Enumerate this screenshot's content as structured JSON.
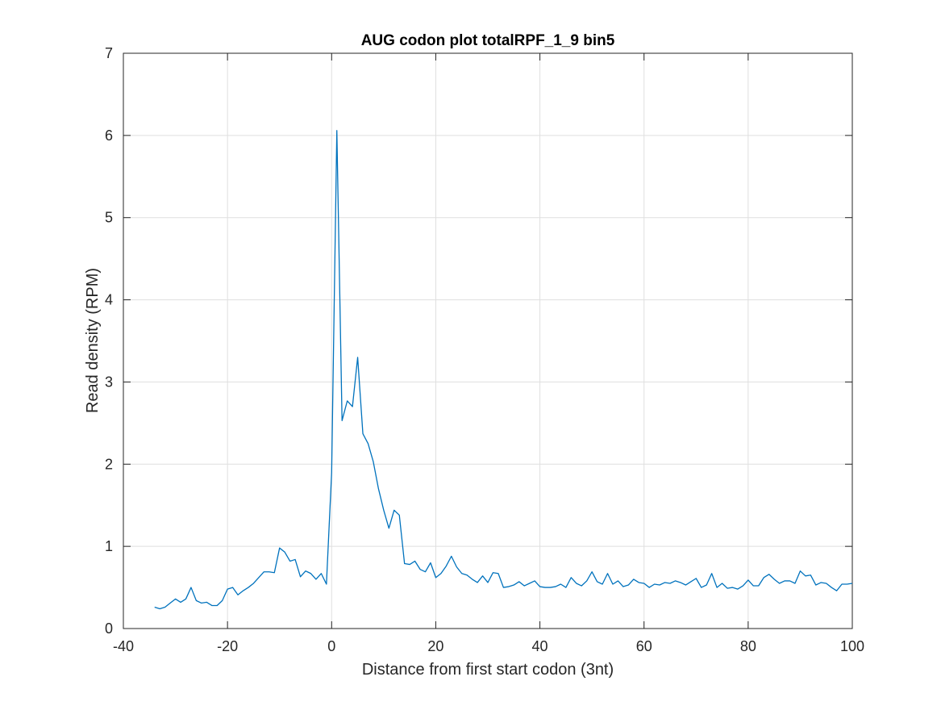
{
  "chart_data": {
    "type": "line",
    "title": "AUG codon plot totalRPF_1_9 bin5",
    "xlabel": "Distance from first start codon (3nt)",
    "ylabel": "Read density (RPM)",
    "xlim": [
      -40,
      100
    ],
    "ylim": [
      0,
      7
    ],
    "xticks": [
      -40,
      -20,
      0,
      20,
      40,
      60,
      80,
      100
    ],
    "yticks": [
      0,
      1,
      2,
      3,
      4,
      5,
      6,
      7
    ],
    "xtick_labels": [
      "-40",
      "-20",
      "0",
      "20",
      "40",
      "60",
      "80",
      "100"
    ],
    "ytick_labels": [
      "0",
      "1",
      "2",
      "3",
      "4",
      "5",
      "6",
      "7"
    ],
    "grid": true,
    "line_color": "#0072BD",
    "series": [
      {
        "x": [
          -34,
          -33,
          -32,
          -31,
          -30,
          -29,
          -28,
          -27,
          -26,
          -25,
          -24,
          -23,
          -22,
          -21,
          -20,
          -19,
          -18,
          -17,
          -16,
          -15,
          -14,
          -13,
          -12,
          -11,
          -10,
          -9,
          -8,
          -7,
          -6,
          -5,
          -4,
          -3,
          -2,
          -1,
          0,
          1,
          2,
          3,
          4,
          5,
          6,
          7,
          8,
          9,
          10,
          11,
          12,
          13,
          14,
          15,
          16,
          17,
          18,
          19,
          20,
          21,
          22,
          23,
          24,
          25,
          26,
          27,
          28,
          29,
          30,
          31,
          32,
          33,
          34,
          35,
          36,
          37,
          38,
          39,
          40,
          41,
          42,
          43,
          44,
          45,
          46,
          47,
          48,
          49,
          50,
          51,
          52,
          53,
          54,
          55,
          56,
          57,
          58,
          59,
          60,
          61,
          62,
          63,
          64,
          65,
          66,
          67,
          68,
          69,
          70,
          71,
          72,
          73,
          74,
          75,
          76,
          77,
          78,
          79,
          80,
          81,
          82,
          83,
          84,
          85,
          86,
          87,
          88,
          89,
          90,
          91,
          92,
          93,
          94,
          95,
          96,
          97,
          98,
          99,
          100
        ],
        "y": [
          0.26,
          0.24,
          0.26,
          0.31,
          0.36,
          0.32,
          0.36,
          0.5,
          0.34,
          0.31,
          0.32,
          0.28,
          0.28,
          0.34,
          0.48,
          0.5,
          0.41,
          0.46,
          0.5,
          0.55,
          0.62,
          0.69,
          0.69,
          0.68,
          0.98,
          0.93,
          0.82,
          0.84,
          0.63,
          0.7,
          0.67,
          0.6,
          0.67,
          0.54,
          1.9,
          6.06,
          2.53,
          2.77,
          2.7,
          3.3,
          2.37,
          2.25,
          2.03,
          1.7,
          1.44,
          1.22,
          1.44,
          1.38,
          0.79,
          0.78,
          0.82,
          0.72,
          0.69,
          0.8,
          0.62,
          0.67,
          0.76,
          0.88,
          0.75,
          0.67,
          0.65,
          0.6,
          0.56,
          0.64,
          0.56,
          0.68,
          0.67,
          0.5,
          0.51,
          0.53,
          0.57,
          0.52,
          0.55,
          0.58,
          0.51,
          0.5,
          0.5,
          0.51,
          0.54,
          0.5,
          0.62,
          0.55,
          0.52,
          0.58,
          0.69,
          0.57,
          0.54,
          0.67,
          0.54,
          0.58,
          0.51,
          0.53,
          0.6,
          0.56,
          0.55,
          0.5,
          0.54,
          0.53,
          0.56,
          0.55,
          0.58,
          0.56,
          0.53,
          0.57,
          0.61,
          0.5,
          0.53,
          0.67,
          0.5,
          0.55,
          0.49,
          0.5,
          0.48,
          0.52,
          0.59,
          0.52,
          0.52,
          0.62,
          0.66,
          0.6,
          0.55,
          0.58,
          0.58,
          0.55,
          0.7,
          0.64,
          0.65,
          0.53,
          0.56,
          0.55,
          0.5,
          0.46,
          0.54,
          0.54,
          0.55
        ]
      }
    ]
  }
}
